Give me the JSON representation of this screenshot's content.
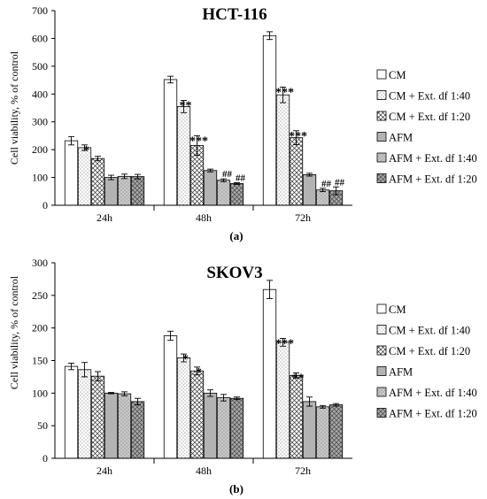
{
  "chart_data": [
    {
      "type": "bar",
      "title": "HCT-116",
      "panel_label": "(a)",
      "ylabel": "Cell viability, % of control",
      "ylim": [
        0,
        700
      ],
      "yticks": [
        "0",
        "100",
        "200",
        "300",
        "400",
        "500",
        "600",
        "700"
      ],
      "categories": [
        "24h",
        "48h",
        "72h"
      ],
      "series": [
        {
          "name": "CM",
          "values": [
            232,
            452,
            610
          ],
          "errors": [
            15,
            12,
            14
          ],
          "marks": [
            "",
            "",
            ""
          ]
        },
        {
          "name": "CM + Ext. df 1:40",
          "values": [
            207,
            355,
            397
          ],
          "errors": [
            10,
            22,
            28
          ],
          "marks": [
            "*",
            "**",
            "***"
          ]
        },
        {
          "name": "CM + Ext. df 1:20",
          "values": [
            168,
            215,
            243
          ],
          "errors": [
            8,
            35,
            25
          ],
          "marks": [
            "",
            "***",
            "***"
          ]
        },
        {
          "name": "AFM",
          "values": [
            100,
            125,
            110
          ],
          "errors": [
            8,
            5,
            5
          ],
          "marks": [
            "",
            "",
            ""
          ]
        },
        {
          "name": "AFM + Ext. df 1:40",
          "values": [
            104,
            90,
            55
          ],
          "errors": [
            8,
            5,
            6
          ],
          "marks": [
            "",
            "##",
            "##"
          ]
        },
        {
          "name": "AFM + Ext. df 1:20",
          "values": [
            103,
            78,
            52
          ],
          "errors": [
            8,
            3,
            14
          ],
          "marks": [
            "",
            "##",
            "##"
          ]
        }
      ]
    },
    {
      "type": "bar",
      "title": "SKOV3",
      "panel_label": "(b)",
      "ylabel": "Cell viability, % of control",
      "ylim": [
        0,
        300
      ],
      "yticks": [
        "0",
        "50",
        "100",
        "150",
        "200",
        "250",
        "300"
      ],
      "categories": [
        "24h",
        "48h",
        "72h"
      ],
      "series": [
        {
          "name": "CM",
          "values": [
            141,
            188,
            259
          ],
          "errors": [
            5,
            7,
            14
          ],
          "marks": [
            "",
            "",
            ""
          ]
        },
        {
          "name": "CM + Ext. df 1:40",
          "values": [
            136,
            154,
            178
          ],
          "errors": [
            11,
            6,
            6
          ],
          "marks": [
            "",
            "*",
            "***"
          ]
        },
        {
          "name": "CM + Ext. df 1:20",
          "values": [
            126,
            134,
            127
          ],
          "errors": [
            7,
            6,
            4
          ],
          "marks": [
            "",
            "*",
            "**"
          ]
        },
        {
          "name": "AFM",
          "values": [
            100,
            100,
            87
          ],
          "errors": [
            1,
            5,
            7
          ],
          "marks": [
            "",
            "",
            ""
          ]
        },
        {
          "name": "AFM + Ext. df 1:40",
          "values": [
            99,
            93,
            79
          ],
          "errors": [
            3,
            5,
            2
          ],
          "marks": [
            "",
            "",
            ""
          ]
        },
        {
          "name": "AFM + Ext. df 1:20",
          "values": [
            87,
            92,
            82
          ],
          "errors": [
            5,
            2,
            2
          ],
          "marks": [
            "",
            "",
            ""
          ]
        }
      ]
    }
  ]
}
